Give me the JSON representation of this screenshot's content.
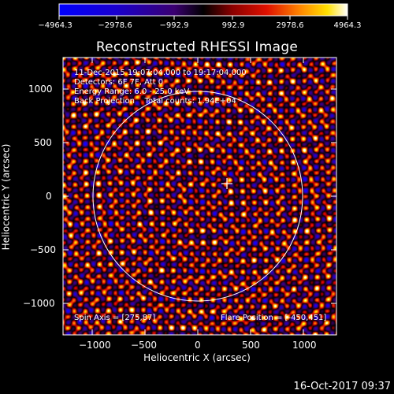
{
  "colorbar": {
    "tick_labels": [
      "−4964.3",
      "−2978.6",
      "−992.9",
      "992.9",
      "2978.6",
      "4964.3"
    ],
    "min": -4964.3,
    "max": 4964.3
  },
  "plot": {
    "title": "Reconstructed RHESSI Image",
    "xlabel": "Heliocentric X (arcsec)",
    "ylabel": "Heliocentric Y (arcsec)",
    "x_ticks": [
      "−1000",
      "−500",
      "0",
      "500",
      "1000"
    ],
    "y_ticks": [
      "1000",
      "500",
      "0",
      "−500",
      "−1000"
    ]
  },
  "info": {
    "line1": "11-Dec-2015 19:07:04.000 to 19:17:04.000",
    "line2": "Detectors: 6F 7F, Att 0",
    "line3": "Energy Range: 6.0 - 25.0 keV",
    "line4": "Back Projection    Total counts: 1.94E+04",
    "spin_axis": "Spin Axis = [275,87]",
    "flare_position": "Flare Position = [-450,451]"
  },
  "timestamp": "16-Oct-2017 09:37",
  "chart_data": {
    "type": "heatmap",
    "title": "Reconstructed RHESSI Image",
    "xlabel": "Heliocentric X (arcsec)",
    "ylabel": "Heliocentric Y (arcsec)",
    "xlim": [
      -1280,
      1280
    ],
    "ylim": [
      -1280,
      1280
    ],
    "color_range": [
      -4964.3,
      4964.3
    ],
    "solar_disk_radius_arcsec": 975,
    "center_marker": [
      275,
      87
    ],
    "colors": {
      "low": "#0000ff",
      "mid": "#000000",
      "high": "#ffffff"
    }
  }
}
